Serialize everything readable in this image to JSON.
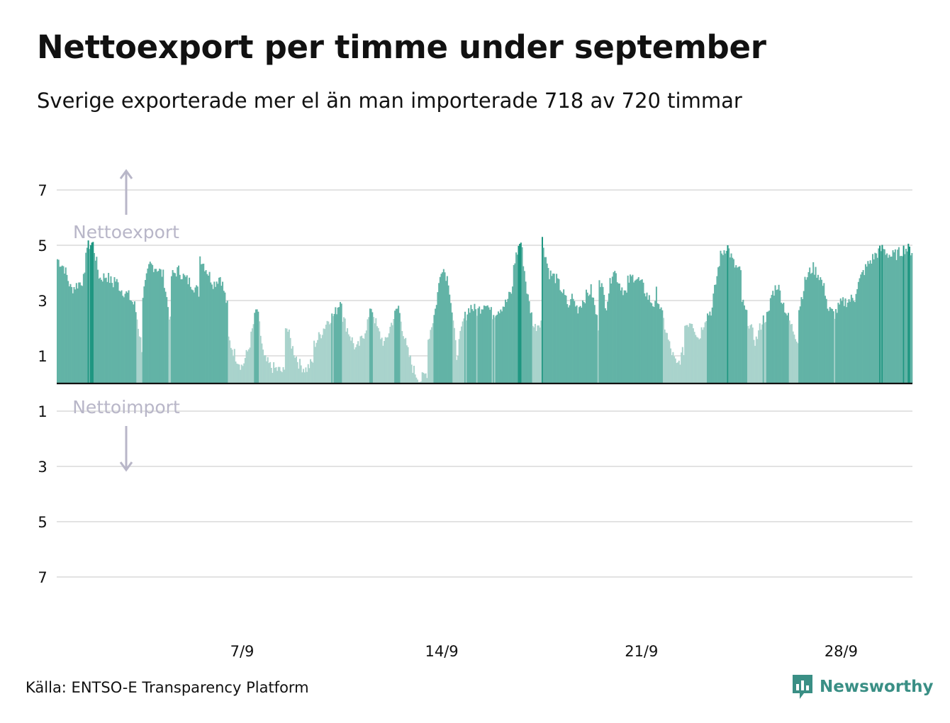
{
  "title": "Nettoexport per timme under september",
  "subtitle": "Sverige exporterade mer el än man importerade 718 av 720 timmar",
  "source": "Källa: ENTSO-E Transparency Platform",
  "brand": "Newsworthy",
  "colors": {
    "high": "#1e9681",
    "mid": "#62b3a6",
    "low": "#a9d3cc",
    "grid": "#e3e3e3",
    "annotation": "#b8b6c8",
    "text": "#111111",
    "brand": "#3a8f85"
  },
  "chart_data": {
    "type": "bar",
    "hours_per_day": 24,
    "days": 30,
    "y_positive_label": "Nettoexport",
    "y_negative_label": "Nettoimport",
    "ylim": [
      -8,
      7.6
    ],
    "yticks": [
      {
        "value": 7,
        "label": "7"
      },
      {
        "value": 5,
        "label": "5"
      },
      {
        "value": 3,
        "label": "3"
      },
      {
        "value": 1,
        "label": "1"
      },
      {
        "value": -1,
        "label": "1"
      },
      {
        "value": -3,
        "label": "3"
      },
      {
        "value": -5,
        "label": "5"
      },
      {
        "value": -7,
        "label": "7"
      }
    ],
    "xticks": [
      {
        "day": 7,
        "label": "7/9"
      },
      {
        "day": 14,
        "label": "14/9"
      },
      {
        "day": 21,
        "label": "21/9"
      },
      {
        "day": 28,
        "label": "28/9"
      }
    ],
    "grid": true,
    "daily_profile": [
      {
        "day": 1,
        "values": [
          4.5,
          4.2,
          3.4,
          3.6,
          3.8
        ]
      },
      {
        "day": 2,
        "values": [
          4.9,
          5.1,
          3.8,
          3.9,
          3.6
        ]
      },
      {
        "day": 3,
        "values": [
          3.8,
          3.4,
          3.2,
          2.8,
          1.3
        ]
      },
      {
        "day": 4,
        "values": [
          3.2,
          4.3,
          4.2,
          3.9,
          2.2
        ]
      },
      {
        "day": 5,
        "values": [
          3.9,
          4.1,
          3.8,
          3.6,
          3.3
        ]
      },
      {
        "day": 6,
        "values": [
          4.6,
          4.1,
          3.6,
          3.9,
          2.8
        ]
      },
      {
        "day": 7,
        "values": [
          1.6,
          1.0,
          0.6,
          1.3,
          2.6
        ]
      },
      {
        "day": 8,
        "values": [
          2.7,
          0.9,
          0.6,
          0.5,
          0.4
        ]
      },
      {
        "day": 9,
        "values": [
          2.2,
          1.3,
          0.7,
          0.5,
          0.8
        ]
      },
      {
        "day": 10,
        "values": [
          1.4,
          1.8,
          2.3,
          2.5,
          3.1
        ]
      },
      {
        "day": 11,
        "values": [
          2.4,
          1.8,
          1.2,
          1.7,
          2.5
        ]
      },
      {
        "day": 12,
        "values": [
          2.8,
          1.9,
          1.4,
          2.2,
          2.8
        ]
      },
      {
        "day": 13,
        "values": [
          2.5,
          1.3,
          0.5,
          0.1,
          0.4
        ]
      },
      {
        "day": 14,
        "values": [
          1.6,
          2.6,
          4.3,
          3.7,
          1.4
        ]
      },
      {
        "day": 15,
        "values": [
          1.0,
          2.3,
          2.8,
          2.6,
          2.9
        ]
      },
      {
        "day": 16,
        "values": [
          3.0,
          2.5,
          2.7,
          2.9,
          3.4
        ]
      },
      {
        "day": 17,
        "values": [
          4.3,
          5.2,
          3.2,
          2.0,
          2.3
        ]
      },
      {
        "day": 18,
        "values": [
          5.2,
          4.0,
          3.8,
          3.3,
          2.7
        ]
      },
      {
        "day": 19,
        "values": [
          3.2,
          2.7,
          3.1,
          3.4,
          2.1
        ]
      },
      {
        "day": 20,
        "values": [
          3.9,
          2.8,
          4.2,
          3.6,
          3.2
        ]
      },
      {
        "day": 21,
        "values": [
          3.7,
          3.9,
          3.6,
          3.1,
          2.8
        ]
      },
      {
        "day": 22,
        "values": [
          3.3,
          2.3,
          1.3,
          0.6,
          1.2
        ]
      },
      {
        "day": 23,
        "values": [
          2.1,
          2.3,
          1.6,
          2.4,
          2.7
        ]
      },
      {
        "day": 24,
        "values": [
          3.1,
          4.6,
          5.0,
          4.3,
          4.0
        ]
      },
      {
        "day": 25,
        "values": [
          3.0,
          2.2,
          1.5,
          2.3,
          2.5
        ]
      },
      {
        "day": 26,
        "values": [
          3.1,
          3.6,
          2.8,
          2.1,
          1.6
        ]
      },
      {
        "day": 27,
        "values": [
          2.7,
          3.8,
          4.2,
          3.9,
          3.2
        ]
      },
      {
        "day": 28,
        "values": [
          2.7,
          2.5,
          2.9,
          3.0,
          3.1
        ]
      },
      {
        "day": 29,
        "values": [
          3.4,
          4.0,
          4.4,
          4.7,
          4.9
        ]
      },
      {
        "day": 30,
        "values": [
          4.8,
          4.6,
          4.7,
          4.9,
          4.8
        ]
      }
    ]
  }
}
